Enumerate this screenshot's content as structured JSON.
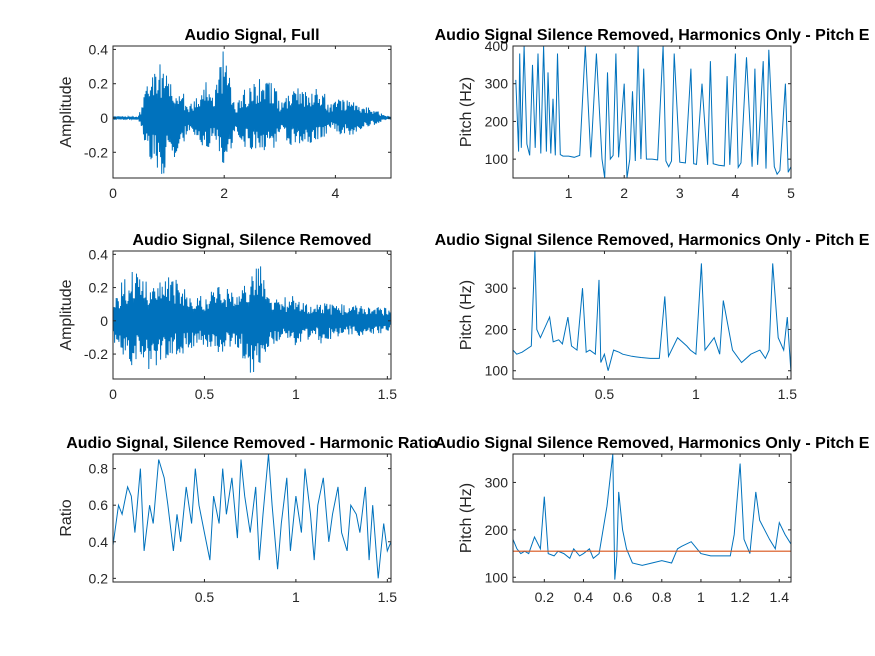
{
  "colors": {
    "signal": "#0072bd",
    "line": "#0072bd",
    "reference": "#d95319",
    "axis": "#262626",
    "background": "#ffffff"
  },
  "chart_data": [
    {
      "id": "p1",
      "type": "line",
      "style": "signal",
      "title": "Audio Signal, Full",
      "xlabel": "",
      "ylabel": "Amplitude",
      "xlim": [
        0,
        5
      ],
      "ylim": [
        -0.35,
        0.42
      ],
      "xticks": [
        0,
        2,
        4
      ],
      "xtick_labels": [
        "0",
        "2",
        "4"
      ],
      "yticks": [
        0.4,
        0.2,
        0,
        -0.2
      ],
      "ytick_labels": [
        "0.4",
        "0.2",
        "0",
        "-0.2"
      ],
      "envelope": {
        "x": [
          0,
          0.45,
          0.5,
          0.6,
          0.8,
          0.9,
          1.0,
          1.2,
          1.35,
          1.5,
          1.7,
          1.8,
          2.0,
          2.1,
          2.2,
          2.3,
          2.5,
          2.7,
          2.9,
          3.0,
          3.2,
          3.4,
          3.6,
          3.8,
          3.9,
          4.1,
          4.3,
          4.5,
          4.7,
          4.9,
          5.0
        ],
        "max": [
          0.01,
          0.01,
          0.05,
          0.2,
          0.3,
          0.33,
          0.2,
          0.22,
          0.06,
          0.15,
          0.23,
          0.12,
          0.42,
          0.3,
          0.05,
          0.15,
          0.2,
          0.24,
          0.22,
          0.08,
          0.18,
          0.17,
          0.19,
          0.16,
          0.08,
          0.12,
          0.1,
          0.08,
          0.05,
          0.015,
          0.01
        ],
        "min": [
          -0.01,
          -0.01,
          -0.05,
          -0.2,
          -0.3,
          -0.34,
          -0.22,
          -0.25,
          -0.06,
          -0.15,
          -0.2,
          -0.1,
          -0.34,
          -0.25,
          -0.05,
          -0.15,
          -0.2,
          -0.22,
          -0.2,
          -0.08,
          -0.18,
          -0.14,
          -0.15,
          -0.13,
          -0.06,
          -0.1,
          -0.1,
          -0.06,
          -0.04,
          -0.015,
          -0.01
        ]
      }
    },
    {
      "id": "p2",
      "type": "line",
      "style": "line",
      "title": "Audio Signal Silence Removed, Harmonics Only - Pitch E",
      "xlabel": "",
      "ylabel": "Pitch (Hz)",
      "xlim": [
        0,
        5
      ],
      "ylim": [
        50,
        400
      ],
      "xticks": [
        1,
        2,
        3,
        4,
        5
      ],
      "xtick_labels": [
        "1",
        "2",
        "3",
        "4",
        "5"
      ],
      "yticks": [
        400,
        300,
        200,
        100
      ],
      "ytick_labels": [
        "400",
        "300",
        "200",
        "100"
      ],
      "x": [
        0.05,
        0.1,
        0.12,
        0.15,
        0.2,
        0.25,
        0.3,
        0.35,
        0.4,
        0.45,
        0.5,
        0.55,
        0.6,
        0.63,
        0.68,
        0.72,
        0.76,
        0.8,
        0.85,
        0.9,
        1.0,
        1.1,
        1.2,
        1.3,
        1.4,
        1.5,
        1.6,
        1.65,
        1.7,
        1.75,
        1.8,
        1.85,
        1.9,
        2.0,
        2.05,
        2.1,
        2.15,
        2.2,
        2.25,
        2.3,
        2.35,
        2.4,
        2.5,
        2.6,
        2.7,
        2.75,
        2.8,
        2.85,
        2.9,
        3.0,
        3.1,
        3.2,
        3.25,
        3.3,
        3.4,
        3.5,
        3.55,
        3.6,
        3.7,
        3.8,
        3.85,
        3.9,
        4.0,
        4.05,
        4.1,
        4.2,
        4.3,
        4.35,
        4.4,
        4.5,
        4.55,
        4.6,
        4.7,
        4.75,
        4.8,
        4.9,
        4.95,
        5.0
      ],
      "y": [
        310,
        120,
        380,
        130,
        400,
        140,
        110,
        350,
        130,
        380,
        115,
        400,
        120,
        330,
        115,
        260,
        110,
        380,
        112,
        108,
        108,
        105,
        110,
        400,
        105,
        380,
        100,
        50,
        330,
        100,
        110,
        380,
        105,
        300,
        50,
        100,
        280,
        95,
        400,
        100,
        340,
        100,
        100,
        98,
        400,
        95,
        80,
        95,
        380,
        92,
        90,
        340,
        88,
        86,
        300,
        85,
        360,
        88,
        84,
        82,
        320,
        85,
        380,
        78,
        90,
        370,
        80,
        340,
        85,
        360,
        75,
        390,
        80,
        60,
        70,
        300,
        65,
        80
      ]
    },
    {
      "id": "p3",
      "type": "line",
      "style": "signal",
      "title": "Audio Signal, Silence Removed",
      "xlabel": "",
      "ylabel": "Amplitude",
      "xlim": [
        0,
        1.52
      ],
      "ylim": [
        -0.35,
        0.42
      ],
      "xticks": [
        0,
        0.5,
        1,
        1.5
      ],
      "xtick_labels": [
        "0",
        "0.5",
        "1",
        "1.5"
      ],
      "yticks": [
        0.4,
        0.2,
        0,
        -0.2
      ],
      "ytick_labels": [
        "0.4",
        "0.2",
        "0",
        "-0.2"
      ],
      "envelope": {
        "x": [
          0,
          0.05,
          0.1,
          0.15,
          0.2,
          0.25,
          0.3,
          0.35,
          0.4,
          0.45,
          0.5,
          0.55,
          0.6,
          0.65,
          0.7,
          0.75,
          0.8,
          0.85,
          0.9,
          0.95,
          1.0,
          1.05,
          1.1,
          1.15,
          1.2,
          1.25,
          1.3,
          1.35,
          1.4,
          1.45,
          1.5,
          1.52
        ],
        "max": [
          0.12,
          0.25,
          0.3,
          0.32,
          0.22,
          0.24,
          0.3,
          0.25,
          0.2,
          0.18,
          0.15,
          0.2,
          0.22,
          0.18,
          0.2,
          0.3,
          0.4,
          0.2,
          0.12,
          0.15,
          0.18,
          0.12,
          0.1,
          0.12,
          0.1,
          0.1,
          0.1,
          0.1,
          0.1,
          0.1,
          0.08,
          0.05
        ],
        "min": [
          -0.12,
          -0.22,
          -0.28,
          -0.2,
          -0.35,
          -0.25,
          -0.22,
          -0.2,
          -0.2,
          -0.15,
          -0.15,
          -0.18,
          -0.2,
          -0.15,
          -0.2,
          -0.34,
          -0.3,
          -0.2,
          -0.12,
          -0.12,
          -0.15,
          -0.12,
          -0.1,
          -0.15,
          -0.1,
          -0.1,
          -0.08,
          -0.1,
          -0.1,
          -0.08,
          -0.08,
          -0.05
        ]
      }
    },
    {
      "id": "p4",
      "type": "line",
      "style": "line",
      "title": "Audio Signal Silence Removed, Harmonics Only - Pitch E",
      "xlabel": "",
      "ylabel": "Pitch (Hz)",
      "xlim": [
        0,
        1.52
      ],
      "ylim": [
        80,
        390
      ],
      "xticks": [
        0.5,
        1,
        1.5
      ],
      "xtick_labels": [
        "0.5",
        "1",
        "1.5"
      ],
      "yticks": [
        300,
        200,
        100
      ],
      "ytick_labels": [
        "300",
        "200",
        "100"
      ],
      "x": [
        0.0,
        0.02,
        0.05,
        0.1,
        0.12,
        0.13,
        0.15,
        0.2,
        0.22,
        0.25,
        0.27,
        0.3,
        0.32,
        0.35,
        0.38,
        0.4,
        0.42,
        0.45,
        0.47,
        0.48,
        0.5,
        0.52,
        0.55,
        0.58,
        0.6,
        0.65,
        0.7,
        0.75,
        0.8,
        0.83,
        0.85,
        0.9,
        0.95,
        0.97,
        1.0,
        1.03,
        1.05,
        1.1,
        1.13,
        1.15,
        1.2,
        1.25,
        1.3,
        1.35,
        1.38,
        1.4,
        1.42,
        1.45,
        1.48,
        1.5,
        1.52
      ],
      "y": [
        150,
        140,
        145,
        160,
        390,
        200,
        180,
        230,
        170,
        175,
        165,
        230,
        160,
        150,
        300,
        145,
        150,
        140,
        320,
        120,
        140,
        100,
        150,
        145,
        140,
        135,
        132,
        130,
        130,
        280,
        135,
        180,
        160,
        150,
        140,
        360,
        150,
        180,
        140,
        270,
        150,
        120,
        140,
        150,
        130,
        150,
        360,
        180,
        150,
        230,
        95
      ]
    },
    {
      "id": "p5",
      "type": "line",
      "style": "line",
      "title": "Audio Signal, Silence Removed - Harmonic Ratio",
      "xlabel": "",
      "ylabel": "Ratio",
      "xlim": [
        0,
        1.52
      ],
      "ylim": [
        0.18,
        0.88
      ],
      "xticks": [
        0.5,
        1,
        1.5
      ],
      "xtick_labels": [
        "0.5",
        "1",
        "1.5"
      ],
      "yticks": [
        0.8,
        0.6,
        0.4,
        0.2
      ],
      "ytick_labels": [
        "0.8",
        "0.6",
        "0.4",
        "0.2"
      ],
      "x": [
        0.0,
        0.03,
        0.05,
        0.08,
        0.1,
        0.12,
        0.15,
        0.17,
        0.2,
        0.22,
        0.25,
        0.28,
        0.3,
        0.33,
        0.35,
        0.37,
        0.4,
        0.43,
        0.45,
        0.47,
        0.5,
        0.53,
        0.55,
        0.58,
        0.6,
        0.62,
        0.65,
        0.68,
        0.7,
        0.72,
        0.75,
        0.78,
        0.8,
        0.82,
        0.85,
        0.87,
        0.9,
        0.92,
        0.95,
        0.97,
        1.0,
        1.03,
        1.05,
        1.08,
        1.1,
        1.12,
        1.15,
        1.18,
        1.2,
        1.23,
        1.25,
        1.28,
        1.3,
        1.33,
        1.35,
        1.38,
        1.4,
        1.42,
        1.45,
        1.48,
        1.5,
        1.52
      ],
      "y": [
        0.38,
        0.6,
        0.55,
        0.7,
        0.65,
        0.45,
        0.8,
        0.35,
        0.6,
        0.5,
        0.85,
        0.75,
        0.6,
        0.35,
        0.55,
        0.4,
        0.7,
        0.5,
        0.8,
        0.6,
        0.45,
        0.3,
        0.65,
        0.5,
        0.8,
        0.55,
        0.75,
        0.42,
        0.85,
        0.65,
        0.45,
        0.7,
        0.3,
        0.55,
        0.88,
        0.6,
        0.25,
        0.5,
        0.75,
        0.35,
        0.65,
        0.45,
        0.8,
        0.55,
        0.3,
        0.6,
        0.75,
        0.4,
        0.55,
        0.7,
        0.45,
        0.35,
        0.6,
        0.55,
        0.45,
        0.7,
        0.3,
        0.6,
        0.2,
        0.5,
        0.35,
        0.4
      ]
    },
    {
      "id": "p6",
      "type": "line",
      "style": "line",
      "title": "Audio Signal Silence Removed, Harmonics Only - Pitch E",
      "xlabel": "",
      "ylabel": "Pitch (Hz)",
      "xlim": [
        0.04,
        1.46
      ],
      "ylim": [
        90,
        360
      ],
      "xticks": [
        0.2,
        0.4,
        0.6,
        0.8,
        1,
        1.2,
        1.4
      ],
      "xtick_labels": [
        "0.2",
        "0.4",
        "0.6",
        "0.8",
        "1",
        "1.2",
        "1.4"
      ],
      "yticks": [
        300,
        200,
        100
      ],
      "ytick_labels": [
        "300",
        "200",
        "100"
      ],
      "x": [
        0.04,
        0.06,
        0.08,
        0.1,
        0.12,
        0.15,
        0.18,
        0.2,
        0.22,
        0.25,
        0.27,
        0.3,
        0.33,
        0.35,
        0.38,
        0.4,
        0.43,
        0.45,
        0.48,
        0.52,
        0.55,
        0.56,
        0.57,
        0.58,
        0.6,
        0.62,
        0.65,
        0.7,
        0.75,
        0.8,
        0.85,
        0.88,
        0.9,
        0.95,
        1.0,
        1.05,
        1.1,
        1.15,
        1.17,
        1.2,
        1.22,
        1.25,
        1.28,
        1.3,
        1.35,
        1.38,
        1.4,
        1.43,
        1.46
      ],
      "y": [
        180,
        160,
        150,
        155,
        150,
        185,
        160,
        270,
        150,
        145,
        155,
        150,
        140,
        160,
        145,
        150,
        160,
        140,
        150,
        250,
        360,
        95,
        145,
        280,
        200,
        160,
        130,
        125,
        130,
        135,
        130,
        160,
        165,
        175,
        150,
        145,
        145,
        145,
        190,
        340,
        180,
        150,
        280,
        220,
        180,
        160,
        215,
        190,
        170
      ],
      "reference_y": 155
    }
  ]
}
